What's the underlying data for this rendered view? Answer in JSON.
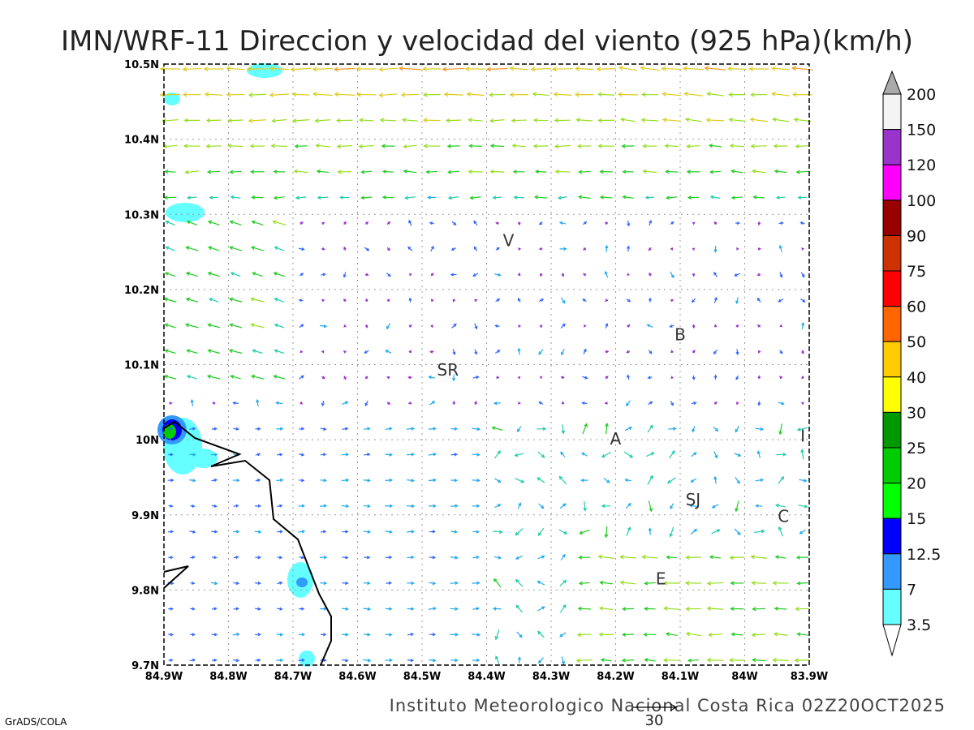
{
  "title": "IMN/WRF-11 Direccion y velocidad del viento (925 hPa)(km/h)",
  "footer": "Instituto Meteorologico Nacional Costa Rica 02Z20OCT2025",
  "credit": "GrADS/COLA",
  "scale_arrow_label": "30",
  "lat_labels": [
    "10.5N",
    "10.4N",
    "10.3N",
    "10.2N",
    "10.1N",
    "10N",
    "9.9N",
    "9.8N",
    "9.7N"
  ],
  "lon_labels": [
    "84.9W",
    "84.8W",
    "84.7W",
    "84.6W",
    "84.5W",
    "84.4W",
    "84.3W",
    "84.2W",
    "84.1W",
    "84W",
    "83.9W"
  ],
  "places": [
    {
      "label": "V",
      "lon": -84.366,
      "lat": 10.265
    },
    {
      "label": "SR",
      "lon": -84.46,
      "lat": 10.093
    },
    {
      "label": "B",
      "lon": -84.1,
      "lat": 10.14
    },
    {
      "label": "A",
      "lon": -84.2,
      "lat": 10.001
    },
    {
      "label": "SJ",
      "lon": -84.08,
      "lat": 9.92
    },
    {
      "label": "C",
      "lon": -83.94,
      "lat": 9.898
    },
    {
      "label": "E",
      "lon": -84.13,
      "lat": 9.815
    },
    {
      "label": "I",
      "lon": -83.91,
      "lat": 10.005
    }
  ],
  "colorbar": {
    "labels": [
      "200",
      "150",
      "120",
      "100",
      "90",
      "75",
      "60",
      "50",
      "40",
      "30",
      "25",
      "20",
      "15",
      "12.5",
      "7",
      "3.5"
    ],
    "colors": [
      "#f4f4f4",
      "#9933cc",
      "#ff00ff",
      "#990000",
      "#cc3300",
      "#ff0000",
      "#ff6600",
      "#ffcc00",
      "#ffff00",
      "#009900",
      "#00cc00",
      "#00ff00",
      "#0000ff",
      "#3399ff",
      "#66ffff"
    ],
    "over_color": "#aaaaaa",
    "under_color": "#ffffff"
  }
}
